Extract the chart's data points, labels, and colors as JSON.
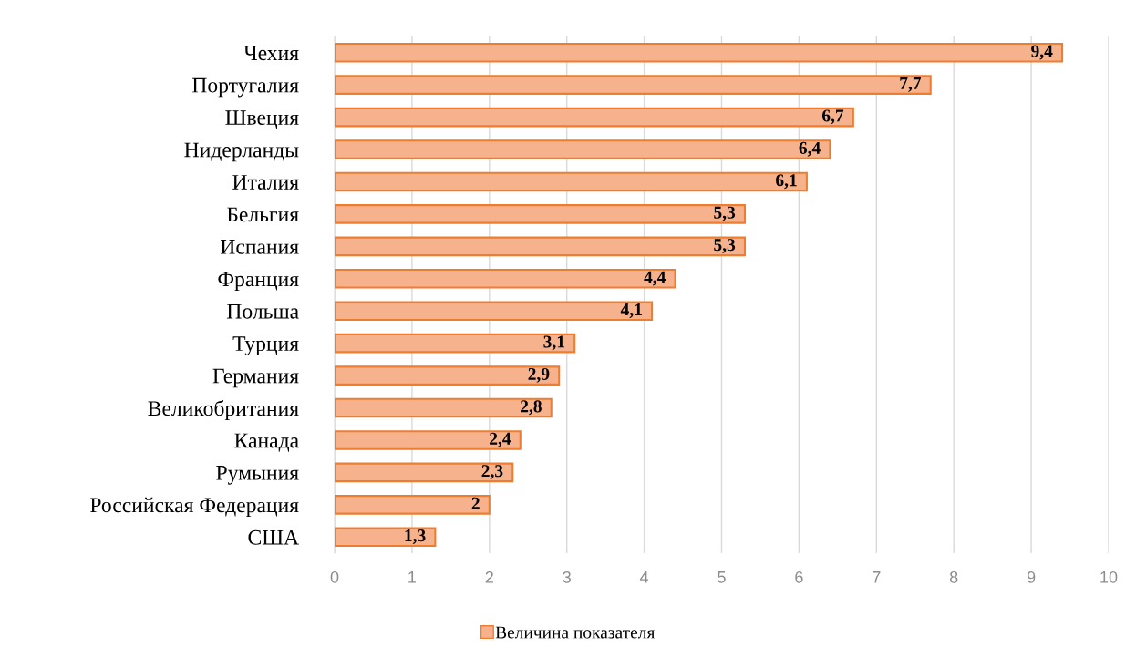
{
  "chart_data": {
    "type": "bar",
    "orientation": "horizontal",
    "categories": [
      "Чехия",
      "Португалия",
      "Швеция",
      "Нидерланды",
      "Италия",
      "Бельгия",
      "Испания",
      "Франция",
      "Польша",
      "Турция",
      "Германия",
      "Великобритания",
      "Канада",
      "Румыния",
      "Российская Федерация",
      "США"
    ],
    "series": [
      {
        "name": "Величина показателя",
        "color": "#f6b28c",
        "values": [
          9.4,
          7.7,
          6.7,
          6.4,
          6.1,
          5.3,
          5.3,
          4.4,
          4.1,
          3.1,
          2.9,
          2.8,
          2.4,
          2.3,
          2,
          1.3
        ],
        "value_labels": [
          "9,4",
          "7,7",
          "6,7",
          "6,4",
          "6,1",
          "5,3",
          "5,3",
          "4,4",
          "4,1",
          "3,1",
          "2,9",
          "2,8",
          "2,4",
          "2,3",
          "2",
          "1,3"
        ]
      }
    ],
    "xlim": [
      0,
      10
    ],
    "xticks": [
      0,
      1,
      2,
      3,
      4,
      5,
      6,
      7,
      8,
      9,
      10
    ],
    "grid": "x",
    "legend": "bottom"
  }
}
